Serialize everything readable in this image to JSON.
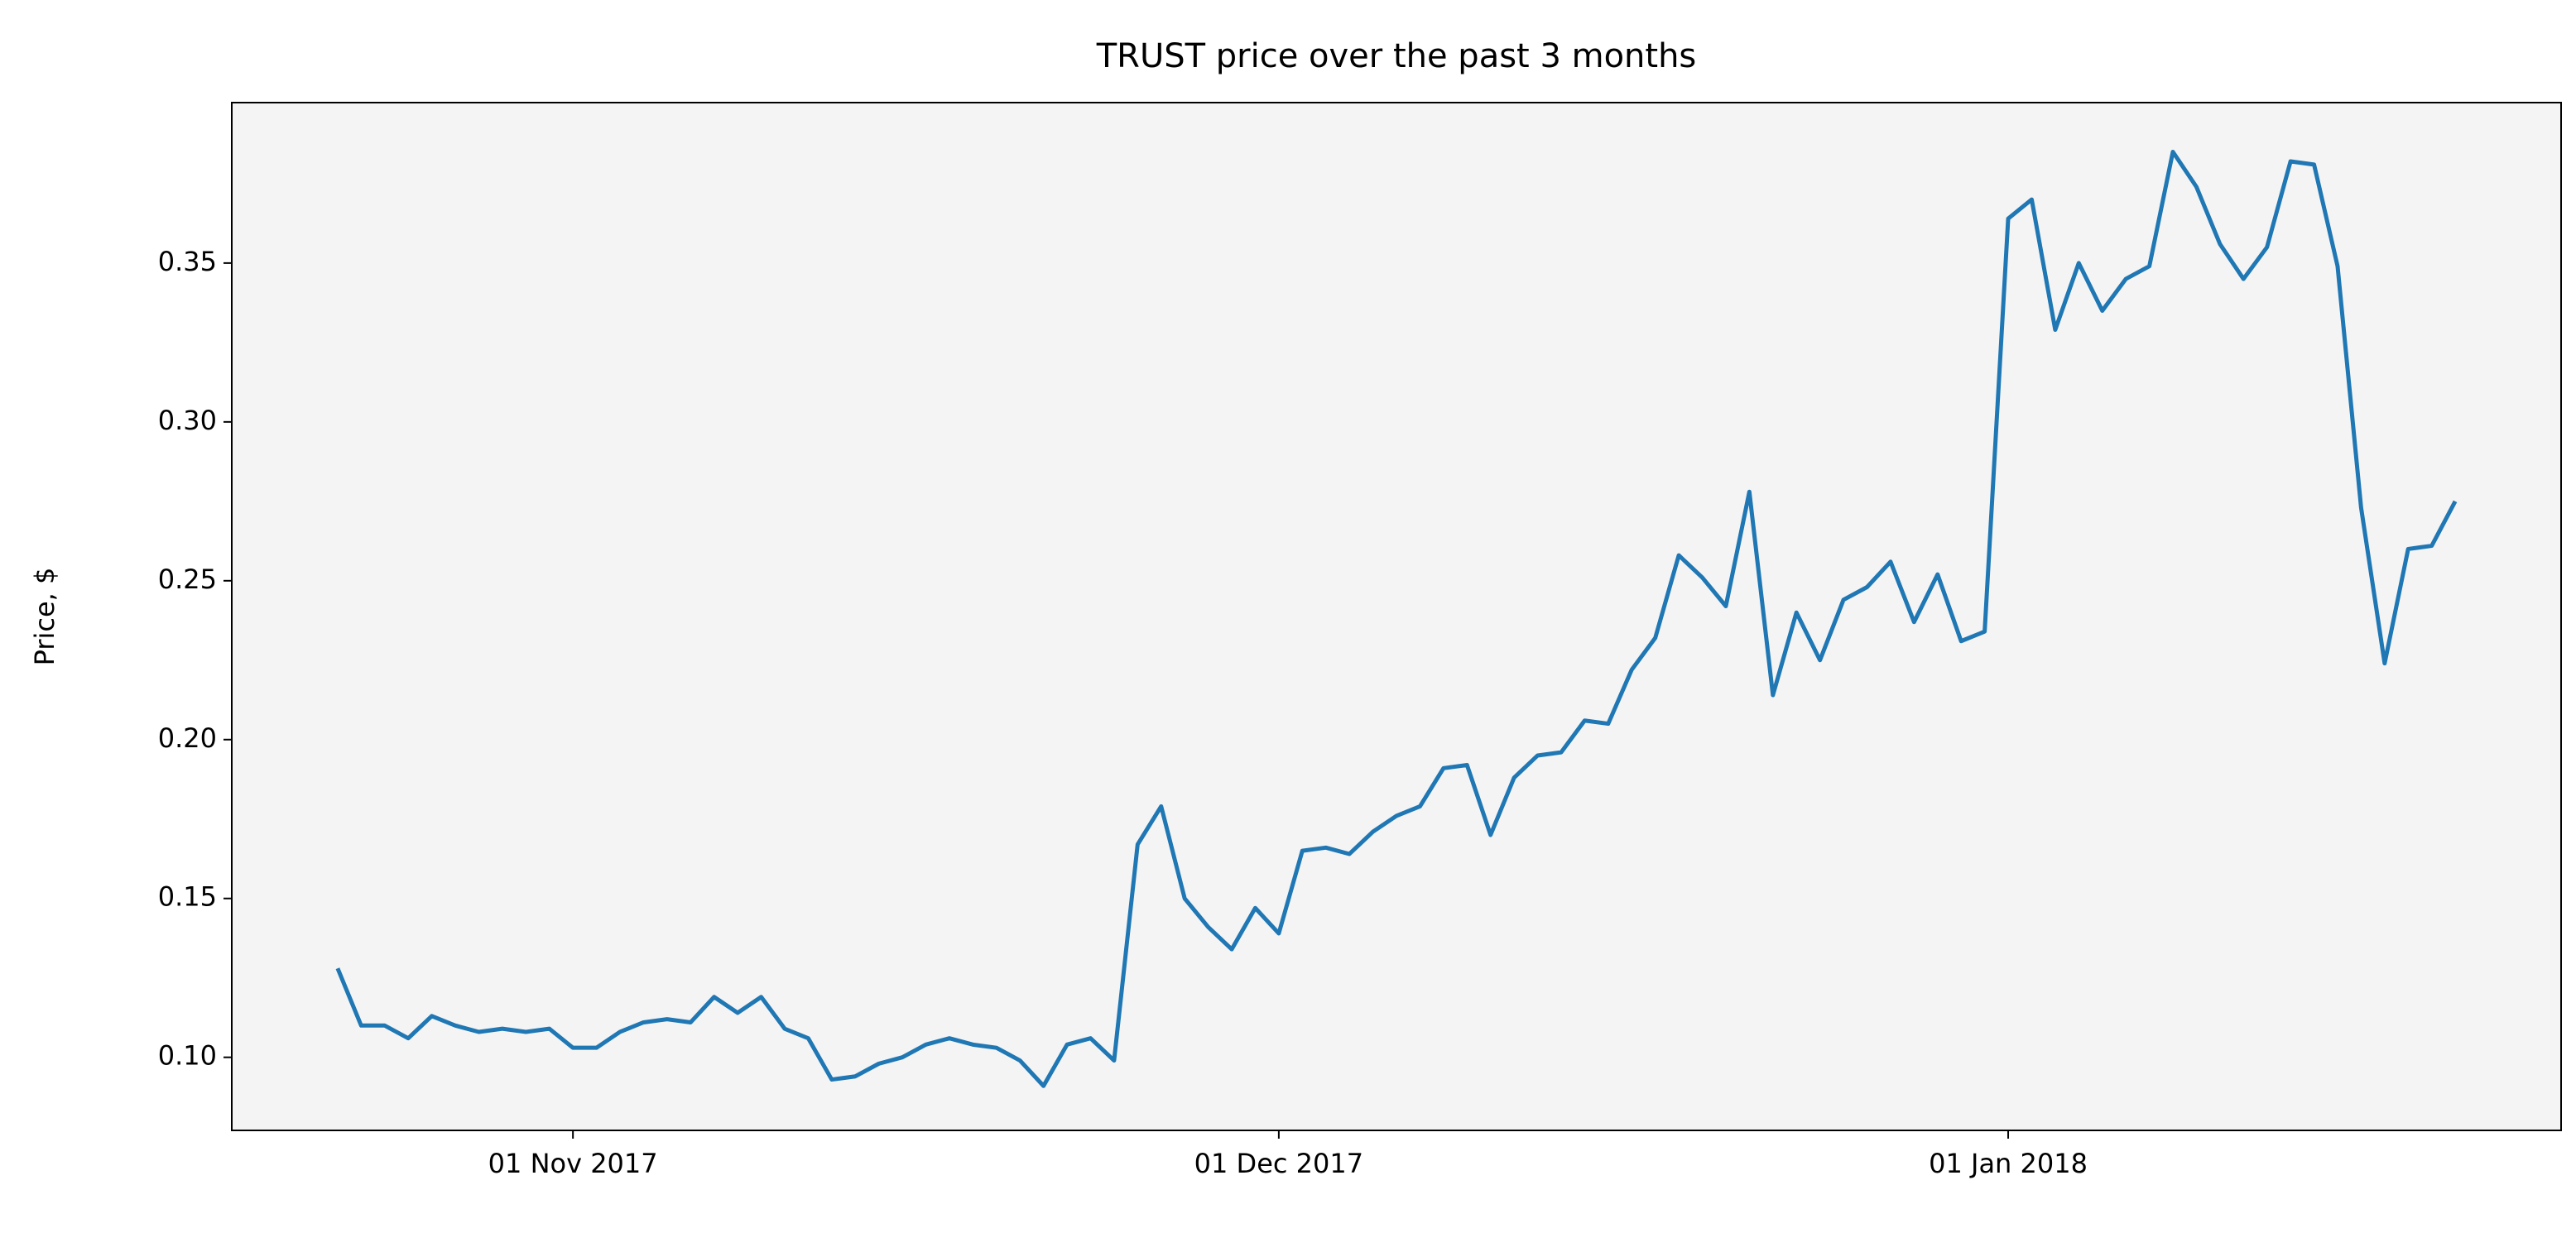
{
  "chart_data": {
    "type": "line",
    "title": "TRUST price over the past 3 months",
    "y_label": "Price, $",
    "x": [
      "2017-10-22",
      "2017-10-23",
      "2017-10-24",
      "2017-10-25",
      "2017-10-26",
      "2017-10-27",
      "2017-10-28",
      "2017-10-29",
      "2017-10-30",
      "2017-10-31",
      "2017-11-01",
      "2017-11-02",
      "2017-11-03",
      "2017-11-04",
      "2017-11-05",
      "2017-11-06",
      "2017-11-07",
      "2017-11-08",
      "2017-11-09",
      "2017-11-10",
      "2017-11-11",
      "2017-11-12",
      "2017-11-13",
      "2017-11-14",
      "2017-11-15",
      "2017-11-16",
      "2017-11-17",
      "2017-11-18",
      "2017-11-19",
      "2017-11-20",
      "2017-11-21",
      "2017-11-22",
      "2017-11-23",
      "2017-11-24",
      "2017-11-25",
      "2017-11-26",
      "2017-11-27",
      "2017-11-28",
      "2017-11-29",
      "2017-11-30",
      "2017-12-01",
      "2017-12-02",
      "2017-12-03",
      "2017-12-04",
      "2017-12-05",
      "2017-12-06",
      "2017-12-07",
      "2017-12-08",
      "2017-12-09",
      "2017-12-10",
      "2017-12-11",
      "2017-12-12",
      "2017-12-13",
      "2017-12-14",
      "2017-12-15",
      "2017-12-16",
      "2017-12-17",
      "2017-12-18",
      "2017-12-19",
      "2017-12-20",
      "2017-12-21",
      "2017-12-22",
      "2017-12-23",
      "2017-12-24",
      "2017-12-25",
      "2017-12-26",
      "2017-12-27",
      "2017-12-28",
      "2017-12-29",
      "2017-12-30",
      "2017-12-31",
      "2018-01-01",
      "2018-01-02",
      "2018-01-03",
      "2018-01-04",
      "2018-01-05",
      "2018-01-06",
      "2018-01-07",
      "2018-01-08",
      "2018-01-09",
      "2018-01-10",
      "2018-01-11",
      "2018-01-12",
      "2018-01-13",
      "2018-01-14",
      "2018-01-15",
      "2018-01-16",
      "2018-01-17",
      "2018-01-18",
      "2018-01-19",
      "2018-01-20"
    ],
    "series": [
      {
        "name": "TRUST",
        "color": "#1f77b4",
        "values": [
          0.128,
          0.11,
          0.11,
          0.106,
          0.113,
          0.11,
          0.108,
          0.109,
          0.108,
          0.109,
          0.103,
          0.103,
          0.108,
          0.111,
          0.112,
          0.111,
          0.119,
          0.114,
          0.119,
          0.109,
          0.106,
          0.093,
          0.094,
          0.098,
          0.1,
          0.104,
          0.106,
          0.104,
          0.103,
          0.099,
          0.091,
          0.104,
          0.106,
          0.099,
          0.167,
          0.179,
          0.15,
          0.141,
          0.134,
          0.147,
          0.139,
          0.165,
          0.166,
          0.164,
          0.171,
          0.176,
          0.179,
          0.191,
          0.192,
          0.17,
          0.188,
          0.195,
          0.196,
          0.206,
          0.205,
          0.222,
          0.232,
          0.258,
          0.251,
          0.242,
          0.278,
          0.214,
          0.24,
          0.225,
          0.244,
          0.248,
          0.256,
          0.237,
          0.252,
          0.231,
          0.234,
          0.364,
          0.37,
          0.329,
          0.35,
          0.335,
          0.345,
          0.349,
          0.385,
          0.374,
          0.356,
          0.345,
          0.355,
          0.382,
          0.381,
          0.349,
          0.273,
          0.224,
          0.26,
          0.261,
          0.275
        ]
      }
    ],
    "xlim": [
      "2017-10-17T12:00",
      "2018-01-24T12:00"
    ],
    "xticks": [
      {
        "value": "2017-11-01",
        "label": "01 Nov 2017"
      },
      {
        "value": "2017-12-01",
        "label": "01 Dec 2017"
      },
      {
        "value": "2018-01-01",
        "label": "01 Jan 2018"
      }
    ],
    "ylim": [
      0.077,
      0.4005
    ],
    "yticks": [
      {
        "value": 0.1,
        "label": "0.10"
      },
      0.15,
      {
        "value": 0.2,
        "label": "0.20"
      },
      0.25,
      {
        "value": 0.3,
        "label": "0.30"
      },
      0.35
    ],
    "background": "#f4f4f4",
    "grid": false
  }
}
